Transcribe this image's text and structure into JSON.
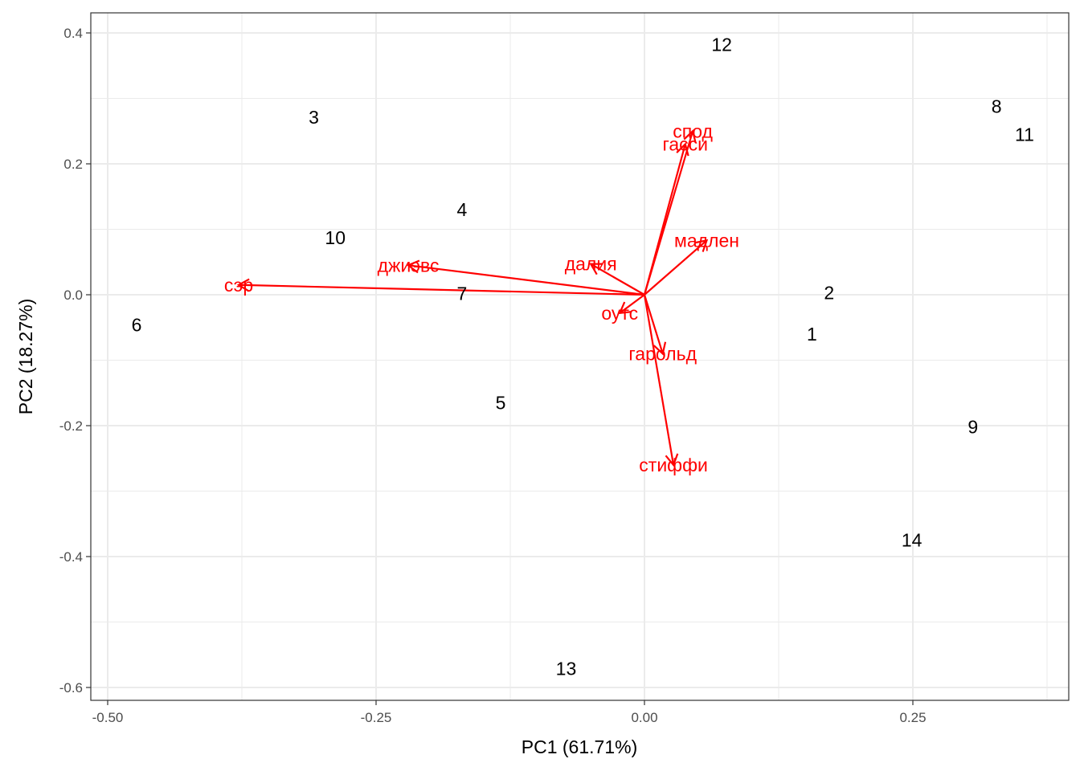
{
  "chart_data": {
    "type": "scatter",
    "xlabel": "PC1 (61.71%)",
    "ylabel": "PC2 (18.27%)",
    "xlim": [
      -0.5,
      0.4
    ],
    "ylim": [
      -0.6,
      0.4
    ],
    "xticks": [
      -0.5,
      -0.25,
      0.0,
      0.25
    ],
    "xtick_labels": [
      "-0.50",
      "-0.25",
      "0.00",
      "0.25"
    ],
    "yticks": [
      -0.6,
      -0.4,
      -0.2,
      0.0,
      0.2,
      0.4
    ],
    "ytick_labels": [
      "-0.6",
      "-0.4",
      "-0.2",
      "0.0",
      "0.2",
      "0.4"
    ],
    "grid": true,
    "observations": [
      {
        "label": "1",
        "x": 0.156,
        "y": -0.06
      },
      {
        "label": "2",
        "x": 0.172,
        "y": 0.003
      },
      {
        "label": "3",
        "x": -0.308,
        "y": 0.271
      },
      {
        "label": "4",
        "x": -0.17,
        "y": 0.13
      },
      {
        "label": "5",
        "x": -0.134,
        "y": -0.165
      },
      {
        "label": "6",
        "x": -0.473,
        "y": -0.046
      },
      {
        "label": "7",
        "x": -0.17,
        "y": 0.002
      },
      {
        "label": "8",
        "x": 0.328,
        "y": 0.288
      },
      {
        "label": "9",
        "x": 0.306,
        "y": -0.202
      },
      {
        "label": "10",
        "x": -0.288,
        "y": 0.087
      },
      {
        "label": "11",
        "x": 0.354,
        "y": 0.245
      },
      {
        "label": "12",
        "x": 0.072,
        "y": 0.382
      },
      {
        "label": "13",
        "x": -0.073,
        "y": -0.571
      },
      {
        "label": "14",
        "x": 0.249,
        "y": -0.375
      }
    ],
    "loadings": [
      {
        "name": "спод",
        "x": 0.045,
        "y": 0.25
      },
      {
        "name": "гаcси",
        "x": 0.038,
        "y": 0.23
      },
      {
        "name": "мадлен",
        "x": 0.058,
        "y": 0.083
      },
      {
        "name": "джиэвс",
        "x": -0.22,
        "y": 0.045
      },
      {
        "name": "далия",
        "x": -0.05,
        "y": 0.047
      },
      {
        "name": "сэр",
        "x": -0.378,
        "y": 0.015
      },
      {
        "name": "оутс",
        "x": -0.023,
        "y": -0.028
      },
      {
        "name": "гарольд",
        "x": 0.017,
        "y": -0.09
      },
      {
        "name": "стиффи",
        "x": 0.027,
        "y": -0.26
      }
    ],
    "colors": {
      "points": "#000000",
      "arrows": "#ff0000",
      "grid": "#ebebeb",
      "border": "#333333"
    }
  }
}
